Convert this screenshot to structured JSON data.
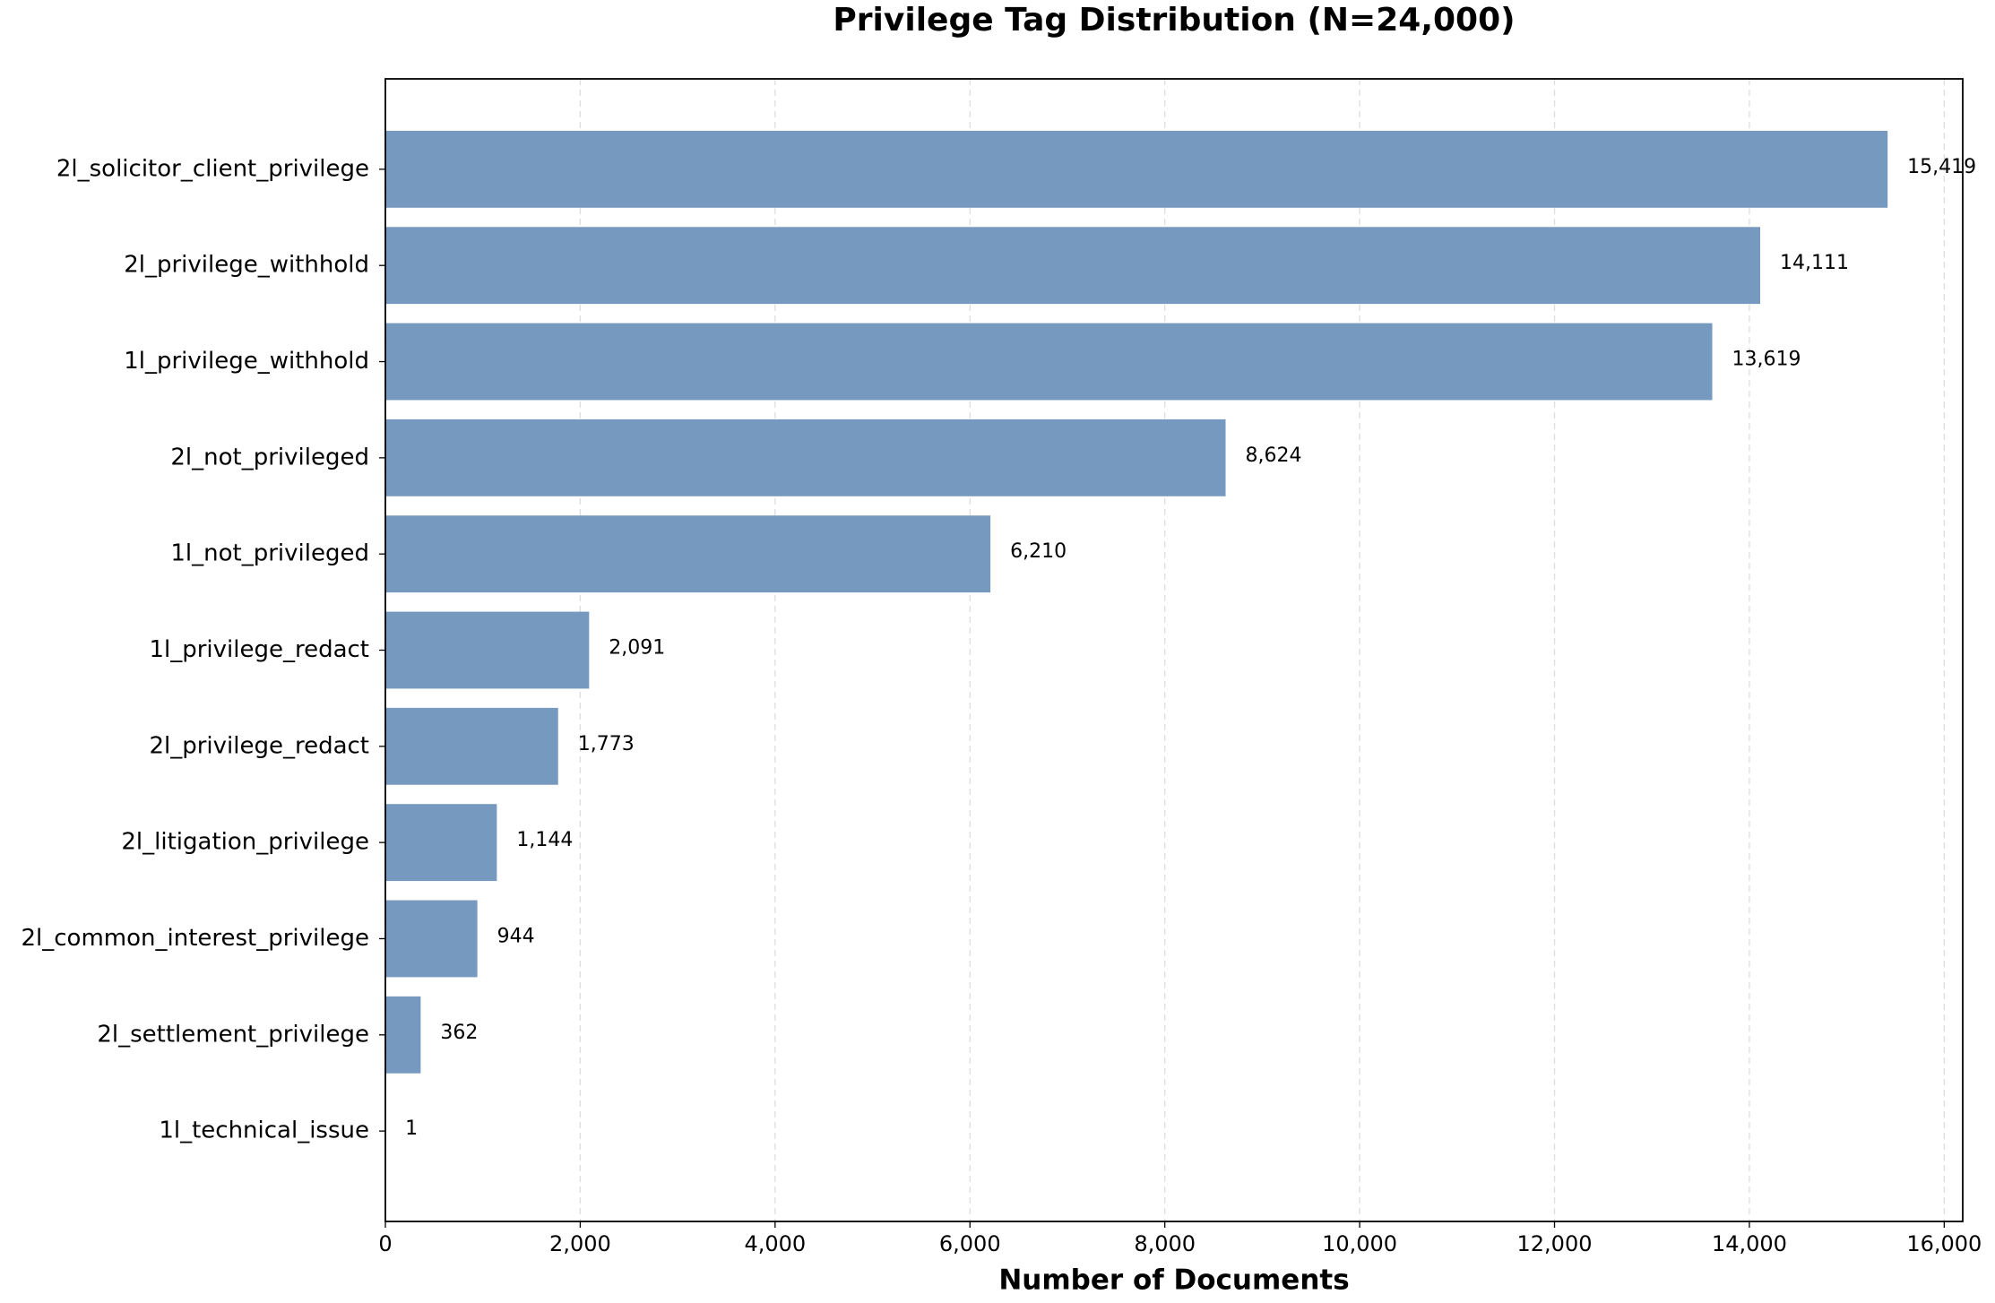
{
  "chart_data": {
    "type": "barh",
    "title": "Privilege Tag Distribution (N=24,000)",
    "xlabel": "Number of Documents",
    "categories": [
      "2l_solicitor_client_privilege",
      "2l_privilege_withhold",
      "1l_privilege_withhold",
      "2l_not_privileged",
      "1l_not_privileged",
      "1l_privilege_redact",
      "2l_privilege_redact",
      "2l_litigation_privilege",
      "2l_common_interest_privilege",
      "2l_settlement_privilege",
      "1l_technical_issue"
    ],
    "values": [
      15419,
      14111,
      13619,
      8624,
      6210,
      2091,
      1773,
      1144,
      944,
      362,
      1
    ],
    "value_labels": [
      "15,419",
      "14,111",
      "13,619",
      "8,624",
      "6,210",
      "2,091",
      "1,773",
      "1,144",
      "944",
      "362",
      "1"
    ],
    "color": "#7699c0",
    "xlim": [
      0,
      16190
    ],
    "xticks": [
      0,
      {
        "value": 2000,
        "label": "2,000"
      },
      {
        "value": 4000,
        "label": "4,000"
      },
      {
        "value": 6000,
        "label": "6,000"
      },
      {
        "value": 8000,
        "label": "8,000"
      },
      {
        "value": 10000,
        "label": "10,000"
      },
      {
        "value": 12000,
        "label": "12,000"
      },
      {
        "value": 14000,
        "label": "14,000"
      },
      {
        "value": 16000,
        "label": "16,000"
      }
    ],
    "grid": true
  }
}
